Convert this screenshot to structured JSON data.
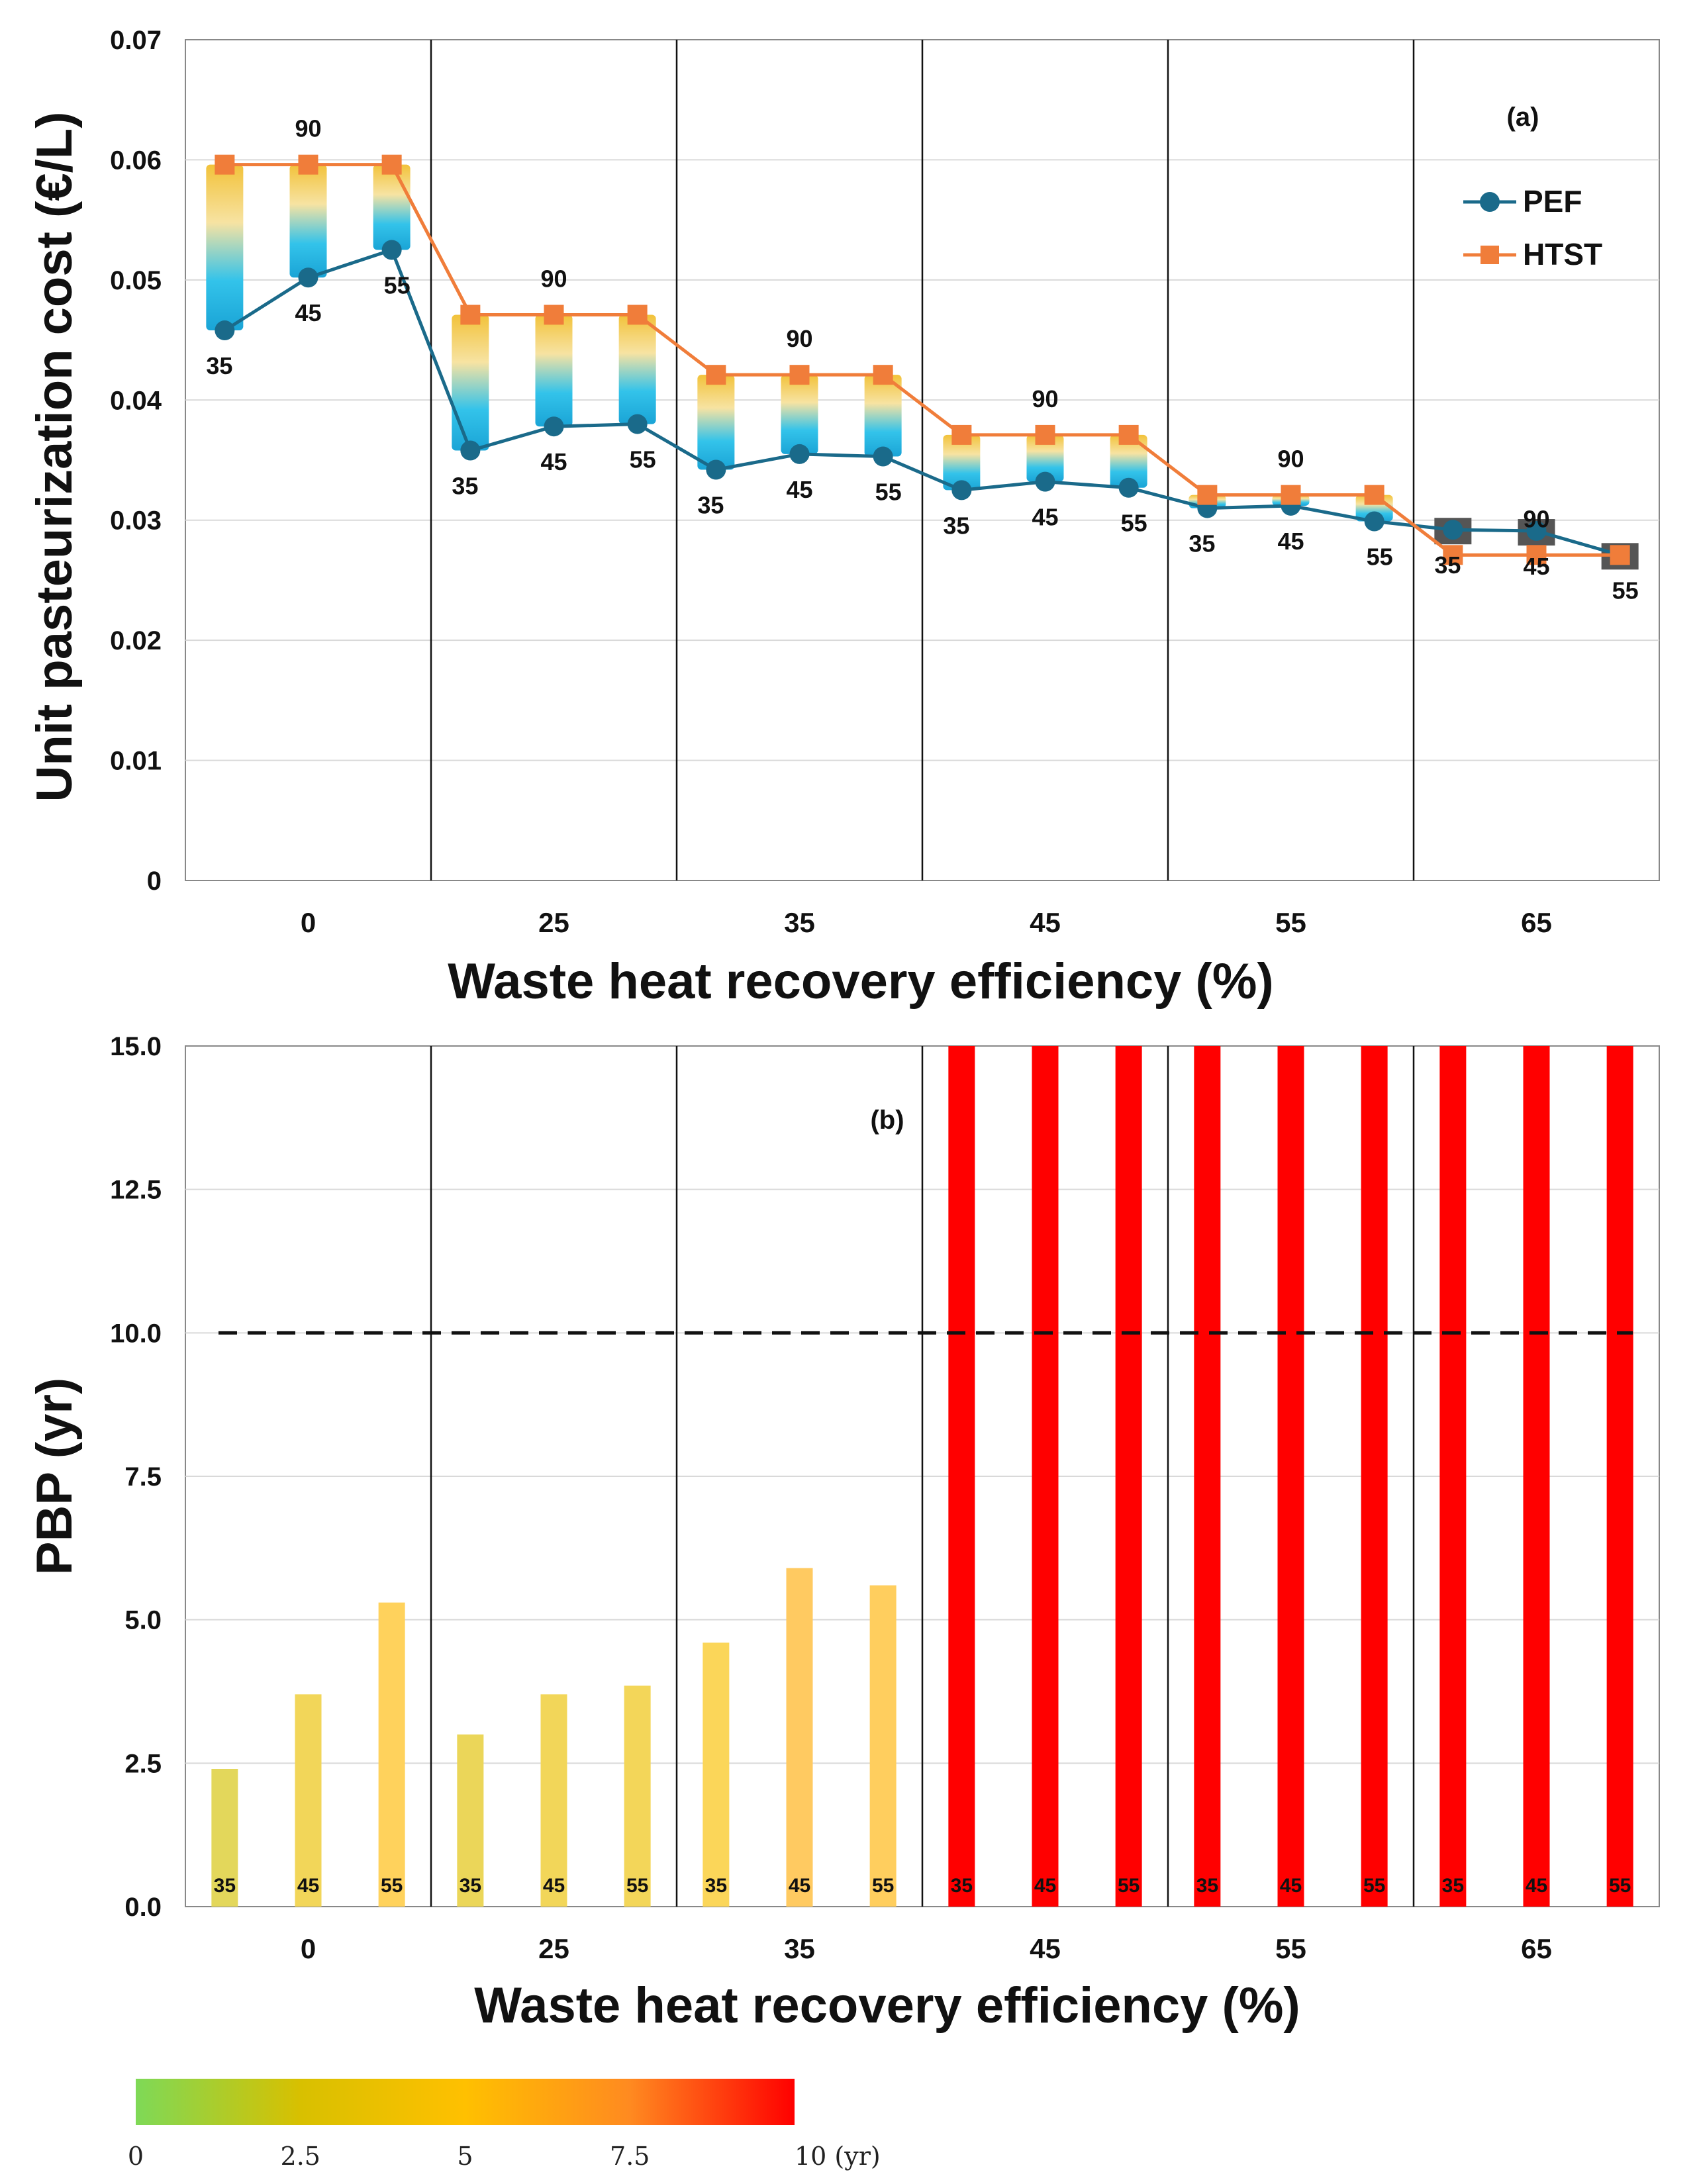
{
  "chart_data": [
    {
      "type": "line",
      "panel_label": "(a)",
      "xlabel": "Waste heat recovery efficiency (%)",
      "ylabel": "Unit pasteurization cost (€/L)",
      "ylim": [
        0,
        0.07
      ],
      "yticks": [
        "0",
        "0.01",
        "0.02",
        "0.03",
        "0.04",
        "0.05",
        "0.06",
        "0.07"
      ],
      "categories": [
        "0",
        "25",
        "35",
        "45",
        "55",
        "65"
      ],
      "sub_labels": [
        "35",
        "45",
        "55"
      ],
      "htst_label": "90",
      "legend_position": "top-right",
      "series": [
        {
          "name": "PEF",
          "color": "#1a6a8a",
          "marker": "circle",
          "values": [
            [
              0.0458,
              0.0502,
              0.0525
            ],
            [
              0.0358,
              0.0378,
              0.038
            ],
            [
              0.0342,
              0.0355,
              0.0353
            ],
            [
              0.0325,
              0.0332,
              0.0327
            ],
            [
              0.031,
              0.0312,
              0.0299
            ],
            [
              0.0292,
              0.0291,
              0.0271
            ]
          ]
        },
        {
          "name": "HTST",
          "color": "#f07d3a",
          "marker": "square",
          "values": [
            [
              0.0596,
              0.0596,
              0.0596
            ],
            [
              0.0471,
              0.0471,
              0.0471
            ],
            [
              0.0421,
              0.0421,
              0.0421
            ],
            [
              0.0371,
              0.0371,
              0.0371
            ],
            [
              0.0321,
              0.0321,
              0.0321
            ],
            [
              0.0271,
              0.0271,
              0.0271
            ]
          ]
        }
      ]
    },
    {
      "type": "bar",
      "panel_label": "(b)",
      "xlabel": "Waste heat recovery efficiency (%)",
      "ylabel": "PBP (yr)",
      "ylim": [
        0,
        15
      ],
      "yticks": [
        "0.0",
        "2.5",
        "5.0",
        "7.5",
        "10.0",
        "12.5",
        "15.0"
      ],
      "categories": [
        "0",
        "25",
        "35",
        "45",
        "55",
        "65"
      ],
      "sub_labels": [
        "35",
        "45",
        "55"
      ],
      "threshold": 10,
      "values": [
        [
          2.4,
          3.7,
          5.3
        ],
        [
          3.0,
          3.7,
          3.85
        ],
        [
          4.6,
          5.9,
          5.6
        ],
        [
          15,
          15,
          15
        ],
        [
          15,
          15,
          15
        ],
        [
          15,
          15,
          15
        ]
      ],
      "colorbar": {
        "ticks": [
          "0",
          "2.5",
          "5",
          "7.5",
          "10 (yr)"
        ],
        "range": [
          0,
          10
        ],
        "colors": [
          "#7ed957",
          "#ffc000",
          "#ff0000"
        ]
      }
    }
  ]
}
